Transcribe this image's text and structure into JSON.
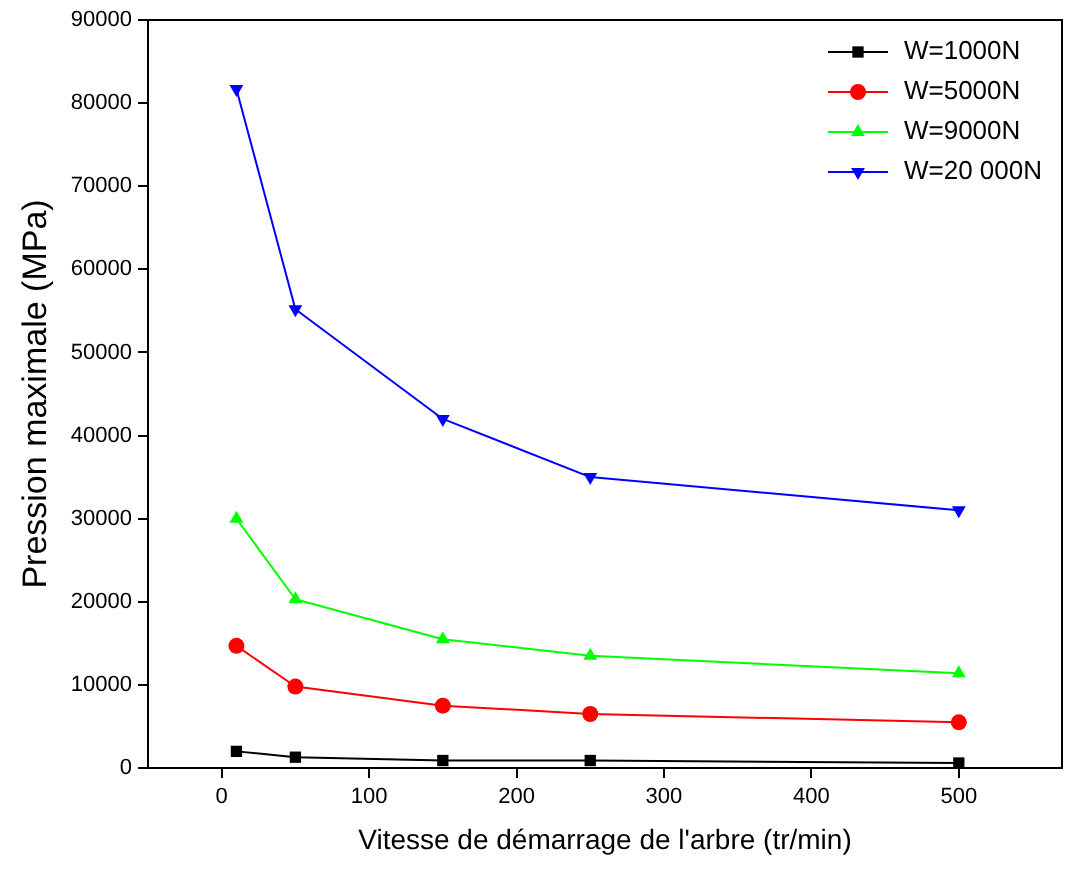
{
  "chart_data": {
    "type": "line",
    "xlabel": "Vitesse de démarrage de l'arbre (tr/min)",
    "ylabel": "Pression maximale (MPa)",
    "x": [
      10,
      50,
      150,
      250,
      500
    ],
    "series": [
      {
        "name": "W=1000N",
        "color": "#000000",
        "marker": "square",
        "values": [
          2000,
          1300,
          900,
          900,
          600
        ]
      },
      {
        "name": "W=5000N",
        "color": "#ff0000",
        "marker": "circle",
        "values": [
          14700,
          9800,
          7500,
          6500,
          5500
        ]
      },
      {
        "name": "W=9000N",
        "color": "#00ff00",
        "marker": "triangle",
        "values": [
          30000,
          20300,
          15500,
          13500,
          11400
        ]
      },
      {
        "name": "W=20 000N",
        "color": "#0000ff",
        "marker": "triangle-down",
        "values": [
          81700,
          55200,
          42000,
          35000,
          31000
        ]
      }
    ],
    "xlim": [
      -50,
      570
    ],
    "xticks": [
      0,
      100,
      200,
      300,
      400,
      500
    ],
    "ylim": [
      0,
      90000
    ],
    "yticks": [
      0,
      10000,
      20000,
      30000,
      40000,
      50000,
      60000,
      70000,
      80000,
      90000
    ],
    "grid": false,
    "legend": "top right",
    "line_style": "solid"
  }
}
